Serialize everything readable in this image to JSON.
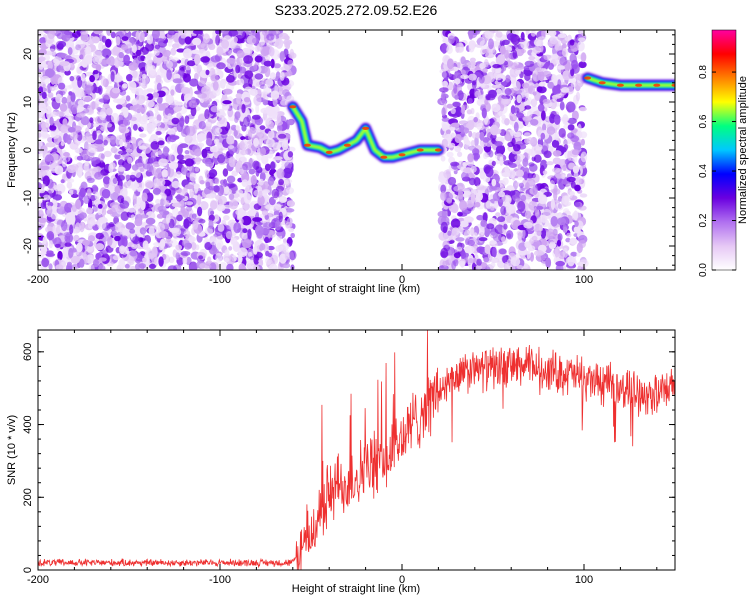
{
  "title": "S233.2025.272.09.52.E26",
  "chart_data": [
    {
      "type": "heatmap",
      "xlabel": "Height of straight line (km)",
      "ylabel": "Frequency (Hz)",
      "xlim": [
        -200,
        150
      ],
      "ylim": [
        -25,
        25
      ],
      "x_ticks": [
        -200,
        -100,
        0,
        100
      ],
      "y_ticks": [
        -20,
        -10,
        0,
        10,
        20
      ],
      "colorbar": {
        "label": "Normalized spectral amplitude",
        "range": [
          0,
          0.97
        ],
        "ticks": [
          0.0,
          0.2,
          0.4,
          0.6,
          0.8
        ],
        "colormap": [
          "#ffffff",
          "#e6c8f5",
          "#b070f0",
          "#6a00e0",
          "#0000ff",
          "#00c8ff",
          "#00ff80",
          "#ffff00",
          "#ff8000",
          "#ff0000",
          "#ff00a0"
        ]
      },
      "noise_regions": [
        [
          -200,
          -60
        ],
        [
          22,
          100
        ]
      ],
      "ridge": [
        {
          "x": -60,
          "y": 9
        },
        {
          "x": -55,
          "y": 6
        },
        {
          "x": -52,
          "y": 1
        },
        {
          "x": -45,
          "y": 0.5
        },
        {
          "x": -40,
          "y": -0.5
        },
        {
          "x": -35,
          "y": 0
        },
        {
          "x": -30,
          "y": 1
        },
        {
          "x": -25,
          "y": 2
        },
        {
          "x": -20,
          "y": 4.5
        },
        {
          "x": -15,
          "y": 0
        },
        {
          "x": -10,
          "y": -1.5
        },
        {
          "x": -5,
          "y": -1.5
        },
        {
          "x": 0,
          "y": -1
        },
        {
          "x": 5,
          "y": -0.5
        },
        {
          "x": 10,
          "y": 0
        },
        {
          "x": 15,
          "y": 0
        },
        {
          "x": 20,
          "y": 0
        },
        {
          "x": 102,
          "y": 15
        },
        {
          "x": 110,
          "y": 14
        },
        {
          "x": 120,
          "y": 13.5
        },
        {
          "x": 130,
          "y": 13.5
        },
        {
          "x": 140,
          "y": 13.5
        },
        {
          "x": 150,
          "y": 13.5
        }
      ]
    },
    {
      "type": "line",
      "xlabel": "Height of straight line (km)",
      "ylabel": "SNR (10 * v/v)",
      "xlim": [
        -200,
        150
      ],
      "ylim": [
        0,
        660
      ],
      "x_ticks": [
        -200,
        -100,
        0,
        100
      ],
      "y_ticks": [
        0,
        200,
        400,
        600
      ],
      "color": "#ee3030",
      "trend": [
        {
          "x": -200,
          "y": 20
        },
        {
          "x": -60,
          "y": 20
        },
        {
          "x": -50,
          "y": 100
        },
        {
          "x": -40,
          "y": 210
        },
        {
          "x": -30,
          "y": 240
        },
        {
          "x": -20,
          "y": 280
        },
        {
          "x": -10,
          "y": 300
        },
        {
          "x": 0,
          "y": 360
        },
        {
          "x": 10,
          "y": 430
        },
        {
          "x": 20,
          "y": 490
        },
        {
          "x": 30,
          "y": 530
        },
        {
          "x": 40,
          "y": 550
        },
        {
          "x": 50,
          "y": 555
        },
        {
          "x": 60,
          "y": 560
        },
        {
          "x": 70,
          "y": 560
        },
        {
          "x": 80,
          "y": 550
        },
        {
          "x": 90,
          "y": 540
        },
        {
          "x": 100,
          "y": 530
        },
        {
          "x": 110,
          "y": 510
        },
        {
          "x": 120,
          "y": 500
        },
        {
          "x": 130,
          "y": 490
        },
        {
          "x": 140,
          "y": 480
        },
        {
          "x": 150,
          "y": 500
        }
      ]
    }
  ]
}
